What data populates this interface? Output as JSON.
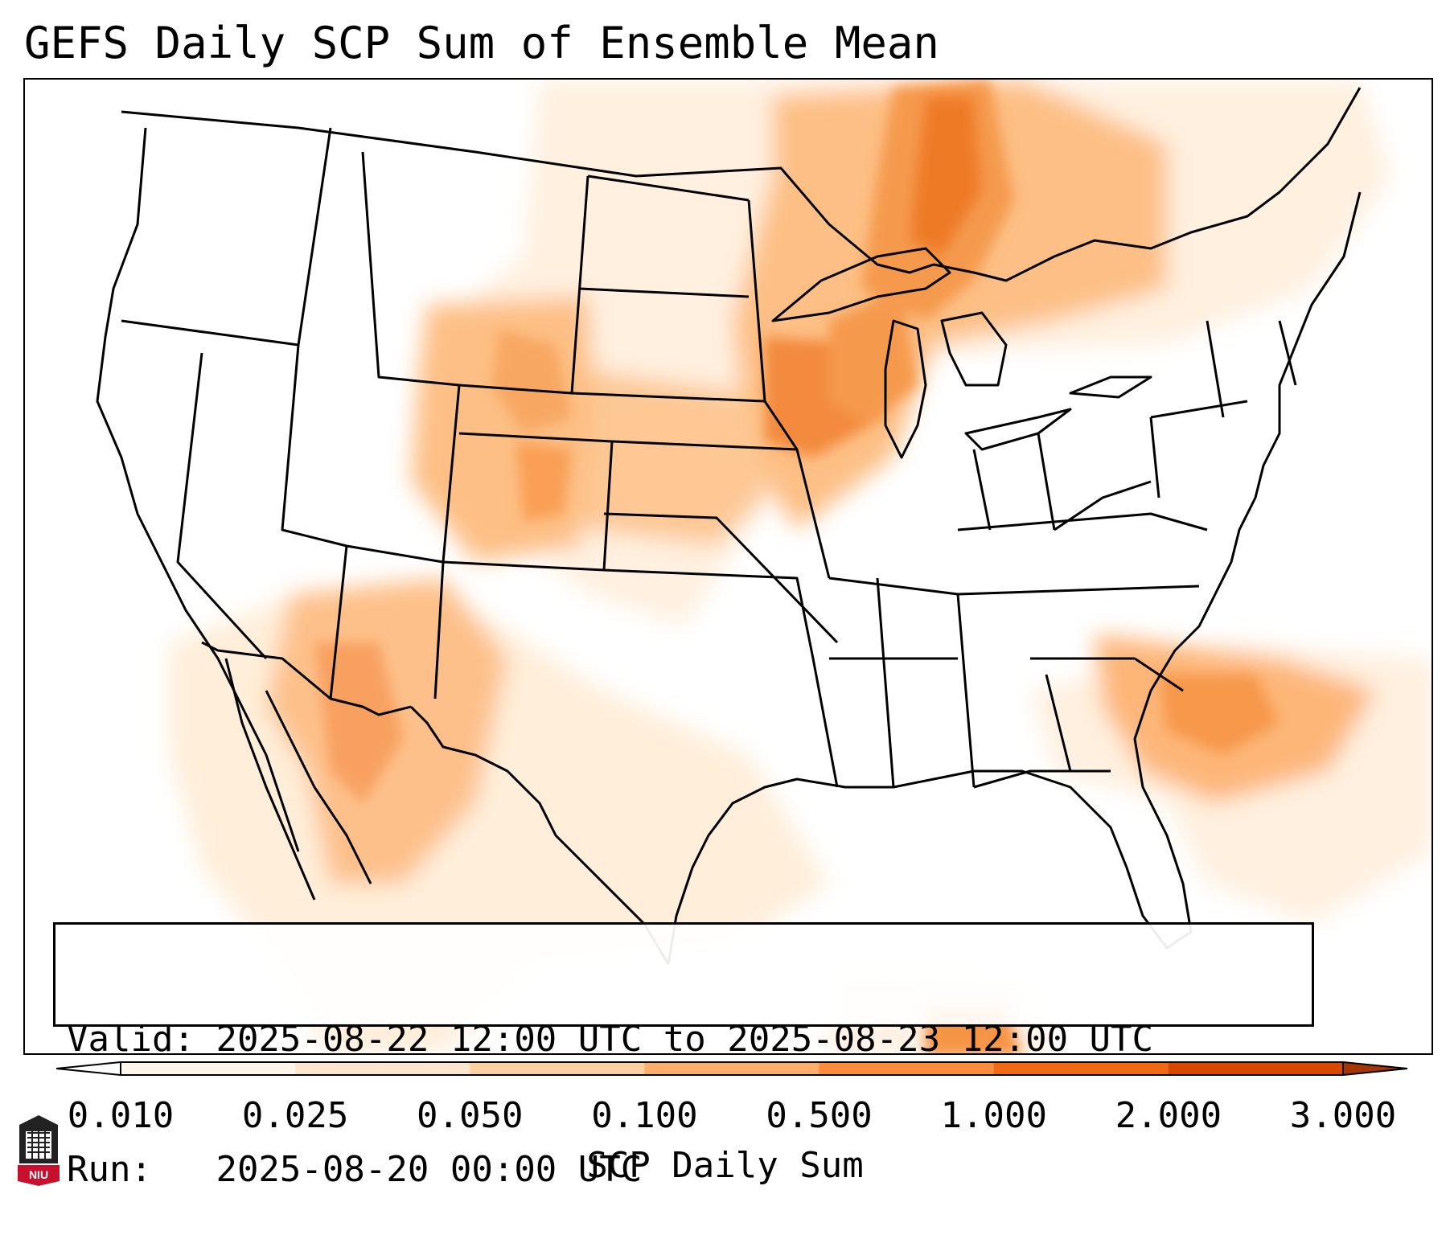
{
  "title": "GEFS Daily SCP Sum of Ensemble Mean",
  "info": {
    "valid_label": "Valid:",
    "valid_value": "2025-08-22 12:00 UTC to 2025-08-23 12:00 UTC",
    "run_label": "Run:",
    "run_value": "2025-08-20 00:00 UTC"
  },
  "colorbar": {
    "label": "SCP Daily Sum",
    "ticks": [
      "0.010",
      "0.025",
      "0.050",
      "0.100",
      "0.500",
      "1.000",
      "2.000",
      "3.000"
    ],
    "colors": [
      "#fff5eb",
      "#fee6ce",
      "#fdd0a2",
      "#fdae6b",
      "#fd8d3c",
      "#f16913",
      "#d94801",
      "#a63603"
    ],
    "extend": "both"
  },
  "map": {
    "region": "Contiguous United States",
    "shading_regions": [
      {
        "area": "Upper Midwest / Great Lakes",
        "level": "1.000"
      },
      {
        "area": "Iowa / Wisconsin",
        "level": "0.500"
      },
      {
        "area": "Wyoming / Colorado",
        "level": "0.500"
      },
      {
        "area": "Arizona / New Mexico / Sonora",
        "level": "0.100"
      },
      {
        "area": "South Carolina / Georgia / Atlantic",
        "level": "0.500"
      },
      {
        "area": "Texas",
        "level": "0.025"
      }
    ]
  },
  "logo": {
    "text": "NIU"
  }
}
